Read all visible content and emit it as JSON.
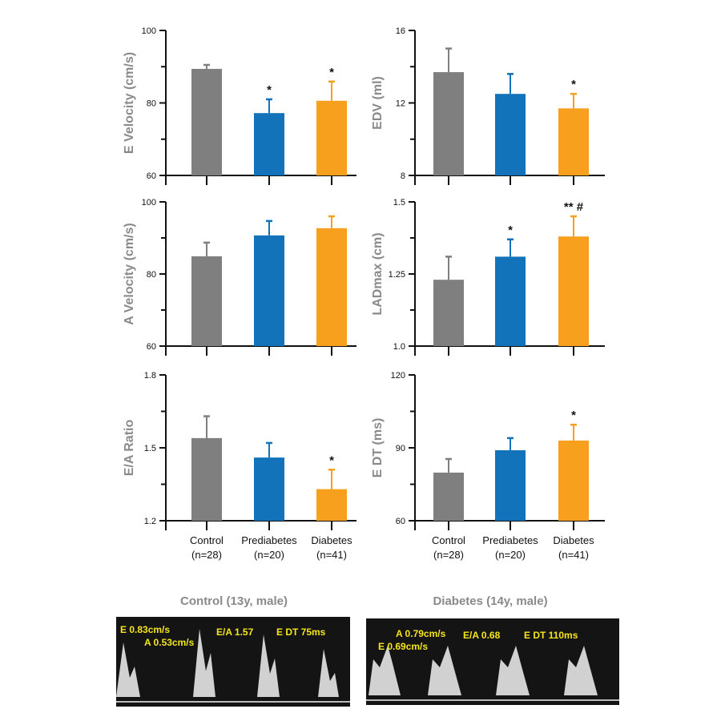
{
  "colors": {
    "Control": "#7f7f7f",
    "Prediabetes": "#1273bb",
    "Diabetes": "#f6a01e"
  },
  "categories": [
    {
      "name": "Control",
      "n": "(n=28)"
    },
    {
      "name": "Prediabetes",
      "n": "(n=20)"
    },
    {
      "name": "Diabetes",
      "n": "(n=41)"
    }
  ],
  "chart_data": [
    {
      "type": "bar",
      "ylabel": "E Velocity (cm/s)",
      "ylim": [
        60,
        100
      ],
      "yticks": [
        60,
        80,
        100
      ],
      "minor_ticks": [
        70,
        90
      ],
      "categories": [
        "Control",
        "Prediabetes",
        "Diabetes"
      ],
      "values": [
        89.4,
        77.2,
        80.6
      ],
      "errors": [
        1.1,
        3.8,
        5.3
      ],
      "annotations": [
        "",
        "*",
        "*"
      ]
    },
    {
      "type": "bar",
      "ylabel": "EDV (ml)",
      "ylim": [
        8,
        16
      ],
      "yticks": [
        8,
        12,
        16
      ],
      "minor_ticks": [
        10,
        14
      ],
      "categories": [
        "Control",
        "Prediabetes",
        "Diabetes"
      ],
      "values": [
        13.7,
        12.5,
        11.7
      ],
      "errors": [
        1.3,
        1.1,
        0.8
      ],
      "annotations": [
        "",
        "",
        "*"
      ]
    },
    {
      "type": "bar",
      "ylabel": "A Velocity (cm/s)",
      "ylim": [
        60,
        100
      ],
      "yticks": [
        60,
        80,
        100
      ],
      "minor_ticks": [
        70,
        90
      ],
      "categories": [
        "Control",
        "Prediabetes",
        "Diabetes"
      ],
      "values": [
        84.9,
        90.7,
        92.7
      ],
      "errors": [
        3.8,
        4.0,
        3.3
      ],
      "annotations": [
        "",
        "",
        ""
      ]
    },
    {
      "type": "bar",
      "ylabel": "LADmax (cm)",
      "ylim": [
        1.0,
        1.5
      ],
      "yticks": [
        1.0,
        1.25,
        1.5
      ],
      "ytick_labels": [
        "1.0",
        "1.25",
        "1.5"
      ],
      "minor_ticks": [
        1.125,
        1.375
      ],
      "categories": [
        "Control",
        "Prediabetes",
        "Diabetes"
      ],
      "values": [
        1.23,
        1.31,
        1.38
      ],
      "errors": [
        0.08,
        0.06,
        0.07
      ],
      "annotations": [
        "",
        "*",
        "** #"
      ]
    },
    {
      "type": "bar",
      "ylabel": "E/A Ratio",
      "ylim": [
        1.2,
        1.8
      ],
      "yticks": [
        1.2,
        1.5,
        1.8
      ],
      "ytick_labels": [
        "1.2",
        "1.5",
        "1.8"
      ],
      "minor_ticks": [
        1.35,
        1.65
      ],
      "categories": [
        "Control",
        "Prediabetes",
        "Diabetes"
      ],
      "values": [
        1.54,
        1.46,
        1.33
      ],
      "errors": [
        0.09,
        0.06,
        0.08
      ],
      "annotations": [
        "",
        "",
        "*"
      ]
    },
    {
      "type": "bar",
      "ylabel": "E DT (ms)",
      "ylim": [
        60,
        120
      ],
      "yticks": [
        60,
        90,
        120
      ],
      "minor_ticks": [
        75,
        105
      ],
      "categories": [
        "Control",
        "Prediabetes",
        "Diabetes"
      ],
      "values": [
        79.8,
        89,
        93
      ],
      "errors": [
        5.6,
        5,
        6.5
      ],
      "annotations": [
        "",
        "",
        "*"
      ]
    }
  ],
  "doppler": [
    {
      "title": "Control (13y, male)",
      "labels": [
        "E 0.83cm/s",
        "A 0.53cm/s",
        "E/A 1.57",
        "E DT 75ms"
      ]
    },
    {
      "title": "Diabetes (14y, male)",
      "labels": [
        "A 0.79cm/s",
        "E 0.69cm/s",
        "E/A 0.68",
        "E DT 110ms"
      ]
    }
  ]
}
